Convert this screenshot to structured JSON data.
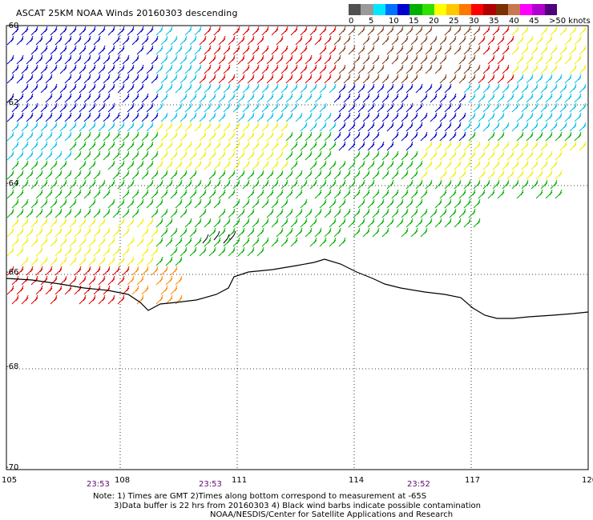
{
  "title": "ASCAT 25KM NOAA Winds 20160303 descending",
  "legend": {
    "colors": [
      "#505050",
      "#9a9a9a",
      "#00e8ff",
      "#0070ff",
      "#0000d0",
      "#00b000",
      "#30e000",
      "#ffff00",
      "#ffc800",
      "#ff7800",
      "#ff0000",
      "#b00000",
      "#7a3000",
      "#c87850",
      "#ff00ff",
      "#b000d0",
      "#50007a"
    ],
    "labels": [
      "0",
      "5",
      "10",
      "15",
      "20",
      "25",
      "30",
      "35",
      "40",
      "45",
      ">50 knots"
    ]
  },
  "axes": {
    "lon_labels": [
      "105",
      "108",
      "111",
      "114",
      "117",
      "120"
    ],
    "lat_labels": [
      "-60",
      "-62",
      "-64",
      "-66",
      "-68",
      "-70"
    ]
  },
  "times": [
    "23:53",
    "23:53",
    "23:52"
  ],
  "notes": {
    "line1": "Note: 1) Times are GMT 2)Times along bottom correspond to measurement at -65S",
    "line2": "3)Data buffer is 22 hrs from 20160303 4) Black wind barbs indicate possible contamination",
    "line3": "NOAA/NESDIS/Center for Satellite Applications and Research"
  },
  "barb_colors": {
    "speed_10": "#00c0e8",
    "speed_15": "#0000c8",
    "speed_20": "#00b000",
    "speed_25": "#f0f000",
    "speed_30": "#ff8800",
    "speed_35": "#e00000",
    "speed_40": "#804020",
    "contaminated": "#000000"
  },
  "wind_zones": [
    {
      "name": "northwest",
      "color_key": "speed_15"
    },
    {
      "name": "northeast",
      "color_key": "speed_10"
    },
    {
      "name": "central",
      "color_key": "speed_20"
    },
    {
      "name": "strong-north",
      "color_key": "speed_35"
    },
    {
      "name": "yellow-band",
      "color_key": "speed_25"
    },
    {
      "name": "coast",
      "color_key": "speed_30"
    }
  ]
}
